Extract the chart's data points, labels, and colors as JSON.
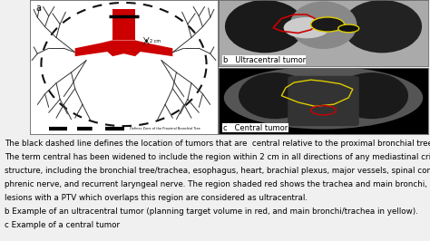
{
  "bg_color": "#f0f0f0",
  "figure_width": 4.74,
  "figure_height": 2.66,
  "dpi": 100,
  "panel_a_label": "a",
  "panel_b_label": "b   Ultracentral tumor",
  "panel_c_label": "c   Central tumor",
  "body_text_lines": [
    "The black dashed line defines the location of tumors that are  central relative to the proximal bronchial tree.",
    "The term central has been widened to include the region within 2 cm in all directions of any mediastinal critical",
    "structure, including the bronchial tree/trachea, esophagus, heart, brachial plexus, major vessels, spinal cord,",
    "phrenic nerve, and recurrent laryngeal nerve. The region shaded red shows the trachea and main bronchi, and",
    "lesions with a PTV which overlaps this region are considered as ultracentral.",
    "b Example of an ultracentral tumor (planning target volume in red, and main bronchi/trachea in yellow).",
    "c Example of a central tumor"
  ],
  "text_fontsize": 6.3,
  "label_fontsize": 7.0,
  "trachea_red": "#cc0000",
  "bronchi_black": "#333333",
  "panel_border": "#aaaaaa",
  "ct_bg_b": "#888888",
  "ct_bg_c": "#000000",
  "tumor_red": "#cc0000",
  "tumor_yellow": "#ddcc00",
  "dashed_black": "#111111",
  "legend_text": "Defines Zone of the Proximal Bronchial Tree"
}
